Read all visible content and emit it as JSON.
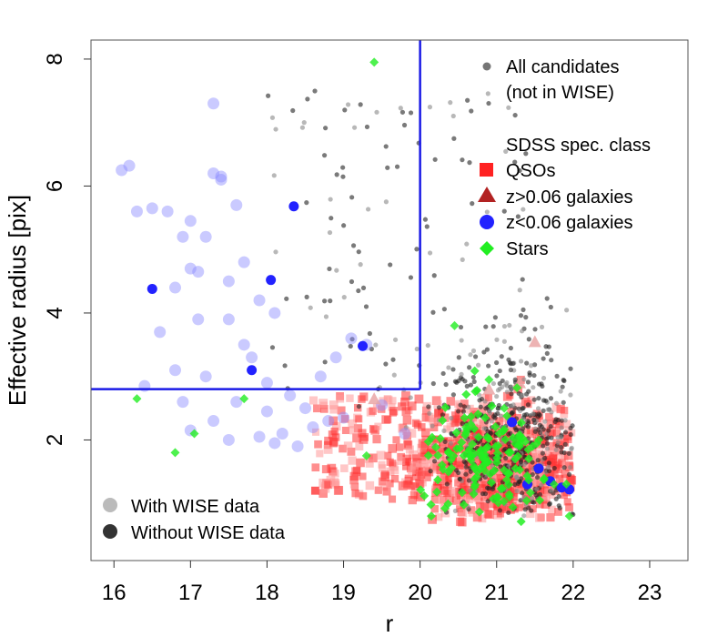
{
  "chart_data": {
    "type": "scatter",
    "title": "",
    "xlabel": "r",
    "ylabel": "Effective radius [pix]",
    "xlim": [
      15.7,
      23.5
    ],
    "ylim": [
      0.1,
      8.3
    ],
    "xticks": [
      16,
      17,
      18,
      19,
      20,
      21,
      22,
      23
    ],
    "yticks": [
      2,
      4,
      6,
      8
    ],
    "grid": false,
    "selection_lines": [
      {
        "name": "vertical-cut",
        "x": [
          20,
          20
        ],
        "y": [
          2.8,
          8.3
        ],
        "color": "#1a1ae6"
      },
      {
        "name": "horizontal-cut",
        "x": [
          15.7,
          20
        ],
        "y": [
          2.8,
          2.8
        ],
        "color": "#1a1ae6"
      }
    ],
    "legend_top_right": {
      "header_lines": [
        "All candidates",
        "(not in WISE)"
      ],
      "section_title": "SDSS spec. class",
      "entries": [
        {
          "label": "QSOs",
          "marker": "square",
          "color": "#ff2222"
        },
        {
          "label": "z>0.06 galaxies",
          "marker": "triangle",
          "color": "#b22222"
        },
        {
          "label": "z<0.06 galaxies",
          "marker": "circle",
          "color": "#2222ff"
        },
        {
          "label": "Stars",
          "marker": "diamond",
          "color": "#22ee22"
        }
      ],
      "candidates_color": "#555555"
    },
    "legend_bottom_left": {
      "entries": [
        {
          "label": "With WISE data",
          "color": "#bbbbbb"
        },
        {
          "label": "Without WISE data",
          "color": "#333333"
        }
      ]
    },
    "series": [
      {
        "name": "z<0.06 galaxies (with WISE data)",
        "marker": "circle",
        "color": "#8a8aff",
        "wise": true,
        "x": [
          16.1,
          16.2,
          16.3,
          16.5,
          16.6,
          16.7,
          16.8,
          16.9,
          17.0,
          17.0,
          17.1,
          17.1,
          17.2,
          17.2,
          17.3,
          17.3,
          17.4,
          17.4,
          17.5,
          17.5,
          17.6,
          17.7,
          17.8,
          17.9,
          18.0,
          18.1,
          16.8,
          17.0,
          17.5,
          17.9,
          18.2,
          17.3,
          16.9,
          17.7,
          16.4,
          18.3,
          18.5,
          18.6,
          18.7,
          18.9,
          19.1,
          19.3,
          19.5,
          19.8,
          18.4,
          18.1,
          17.6,
          18.0,
          18.8,
          19.0
        ],
        "y": [
          6.25,
          6.32,
          5.6,
          5.65,
          3.7,
          5.6,
          3.1,
          5.2,
          5.45,
          4.7,
          3.9,
          4.65,
          5.2,
          3.0,
          7.3,
          6.2,
          6.15,
          6.1,
          3.9,
          4.5,
          5.7,
          4.8,
          3.3,
          4.2,
          2.9,
          4.0,
          4.4,
          2.15,
          2.0,
          2.05,
          2.1,
          2.3,
          2.6,
          3.5,
          2.85,
          2.7,
          2.5,
          2.2,
          3.0,
          3.3,
          3.6,
          3.5,
          2.55,
          2.1,
          1.9,
          1.95,
          2.6,
          2.45,
          2.3,
          2.35
        ]
      },
      {
        "name": "z<0.06 galaxies (without WISE data)",
        "marker": "circle",
        "color": "#2222ff",
        "wise": false,
        "x": [
          16.5,
          18.05,
          18.35,
          17.8,
          19.25,
          21.2,
          21.55,
          21.85,
          21.7,
          21.95,
          21.4
        ],
        "y": [
          4.38,
          4.52,
          5.68,
          3.1,
          3.48,
          2.28,
          1.55,
          1.25,
          1.35,
          1.22,
          1.3
        ]
      },
      {
        "name": "z>0.06 galaxies (with WISE data)",
        "marker": "triangle",
        "color": "#e8a0a0",
        "wise": true,
        "x": [
          19.4,
          21.5,
          21.3,
          20.9
        ],
        "y": [
          2.65,
          3.55,
          2.9,
          2.8
        ]
      },
      {
        "name": "Stars",
        "marker": "diamond",
        "color": "#22ee22",
        "wise": true,
        "x": [
          19.4,
          16.3,
          16.8,
          17.05,
          17.7,
          19.3,
          20.45,
          20.6,
          20.9,
          21.1,
          21.3,
          21.55,
          21.75,
          21.95,
          21.0,
          20.75
        ],
        "y": [
          7.95,
          2.65,
          1.8,
          2.1,
          2.65,
          1.75,
          3.8,
          2.2,
          2.95,
          2.5,
          1.9,
          2.0,
          1.3,
          0.8,
          1.1,
          1.5
        ]
      }
    ]
  }
}
